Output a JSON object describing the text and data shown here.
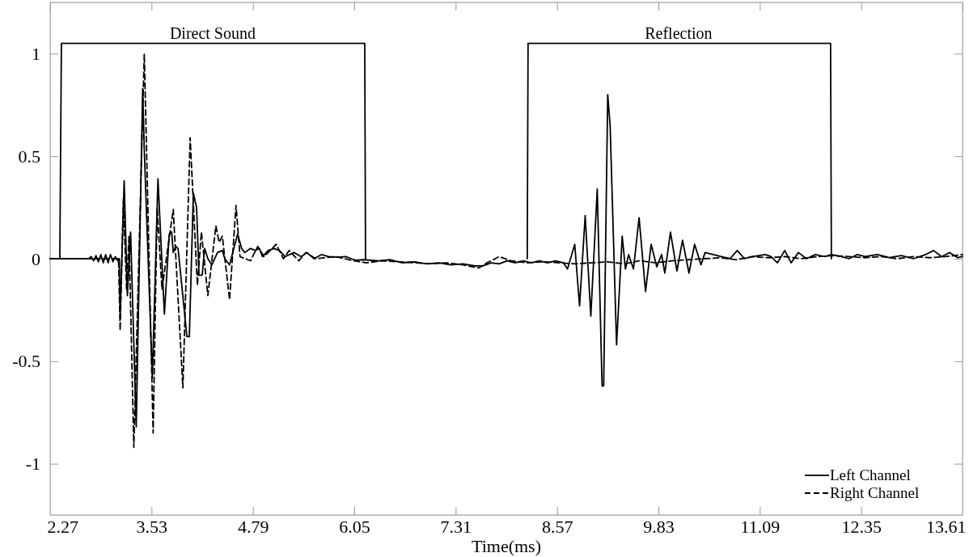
{
  "chart_data": {
    "type": "line",
    "xlabel": "Time(ms)",
    "xlim": [
      2.27,
      13.61
    ],
    "xticks": [
      2.27,
      3.53,
      4.79,
      6.05,
      7.31,
      8.57,
      9.83,
      11.09,
      12.35,
      13.61
    ],
    "ylim": [
      -1.25,
      1.25
    ],
    "yticks": [
      -1,
      -0.5,
      0,
      0.5,
      1
    ],
    "grid": false,
    "legend": "bottom right",
    "annotations": [
      {
        "text": "Direct Sound",
        "x": 4.29,
        "y": 1.05
      },
      {
        "text": "Reflection",
        "x": 10.08,
        "y": 1.05
      }
    ],
    "series": [
      {
        "name": "Left Channel",
        "color": "#000000",
        "line_style": "solid",
        "x": [
          2.27,
          2.75,
          2.78,
          2.81,
          2.84,
          2.87,
          2.9,
          2.93,
          2.96,
          2.99,
          3.02,
          3.05,
          3.08,
          3.11,
          3.13,
          3.14,
          3.19,
          3.23,
          3.27,
          3.34,
          3.42,
          3.44,
          3.54,
          3.61,
          3.69,
          3.75,
          3.78,
          3.8,
          3.83,
          3.86,
          3.97,
          4.0,
          4.05,
          4.09,
          4.12,
          4.16,
          4.19,
          4.23,
          4.28,
          4.35,
          4.41,
          4.44,
          4.5,
          4.6,
          4.65,
          4.69,
          4.76,
          4.82,
          4.87,
          4.91,
          4.98,
          5.05,
          5.12,
          5.19,
          5.3,
          5.39,
          5.46,
          5.55,
          5.64,
          5.73,
          5.84,
          5.95,
          6.06,
          6.17,
          6.35,
          6.5,
          6.65,
          6.8,
          6.95,
          7.1,
          7.25,
          7.4,
          7.55,
          7.65,
          7.75,
          7.85,
          7.95,
          8.05,
          8.15,
          8.25,
          8.35,
          8.45,
          8.55,
          8.65,
          8.7,
          8.79,
          8.85,
          8.92,
          8.99,
          9.07,
          9.13,
          9.15,
          9.2,
          9.23,
          9.31,
          9.38,
          9.42,
          9.46,
          9.52,
          9.59,
          9.67,
          9.74,
          9.81,
          9.87,
          9.91,
          9.98,
          10.06,
          10.13,
          10.21,
          10.28,
          10.36,
          10.41,
          10.51,
          10.61,
          10.72,
          10.81,
          10.9,
          11.0,
          11.16,
          11.23,
          11.31,
          11.4,
          11.48,
          11.57,
          11.67,
          11.78,
          11.9,
          11.98,
          12.1,
          12.2,
          12.3,
          12.4,
          12.55,
          12.7,
          12.85,
          13.0,
          13.15,
          13.25,
          13.35,
          13.45,
          13.55,
          13.61
        ],
        "values": [
          0,
          0,
          0.01,
          -0.01,
          0.015,
          -0.015,
          0.02,
          -0.02,
          0.02,
          -0.02,
          0.02,
          -0.015,
          0.01,
          -0.01,
          0,
          -0.28,
          0.38,
          -0.18,
          0.13,
          -0.82,
          0.83,
          0.53,
          -0.58,
          0.39,
          -0.27,
          0.12,
          0.13,
          0.03,
          0.06,
          0.05,
          -0.38,
          -0.38,
          0.32,
          0.25,
          -0.08,
          -0.08,
          0.05,
          0,
          -0.03,
          0.03,
          0.04,
          0,
          -0.03,
          0.12,
          0.05,
          0.03,
          0.05,
          0.04,
          0.05,
          0.01,
          0.04,
          0.05,
          0.04,
          0.01,
          0.03,
          0.01,
          0.03,
          0,
          0.02,
          0.01,
          0.007,
          0.01,
          -0.007,
          -0.005,
          -0.01,
          -0.005,
          -0.02,
          -0.015,
          -0.025,
          -0.02,
          -0.03,
          -0.025,
          -0.035,
          -0.035,
          -0.02,
          -0.025,
          -0.01,
          -0.02,
          -0.01,
          -0.02,
          -0.01,
          -0.02,
          -0.01,
          -0.02,
          -0.05,
          0.07,
          -0.23,
          0.21,
          -0.28,
          0.34,
          -0.62,
          -0.62,
          0.8,
          0.65,
          -0.42,
          0.11,
          -0.05,
          0.02,
          -0.05,
          0.2,
          -0.16,
          0.07,
          -0.04,
          0.02,
          -0.07,
          0.13,
          -0.06,
          0.09,
          -0.07,
          0.07,
          -0.03,
          0.03,
          0.02,
          0.01,
          0,
          0.04,
          0,
          0.01,
          0.02,
          0.01,
          -0.02,
          0.04,
          -0.02,
          0.03,
          0,
          0.02,
          0.01,
          0.02,
          0.01,
          0,
          0.02,
          0.01,
          0.02,
          0.005,
          0.015,
          0,
          0.02,
          0.04,
          0.01,
          0.03,
          0.005,
          0.01
        ]
      },
      {
        "name": "Right Channel",
        "color": "#000000",
        "line_style": "dashed",
        "x": [
          2.27,
          3.12,
          3.14,
          3.18,
          3.22,
          3.25,
          3.31,
          3.44,
          3.47,
          3.55,
          3.6,
          3.66,
          3.8,
          3.92,
          4.01,
          4.1,
          4.15,
          4.23,
          4.33,
          4.37,
          4.41,
          4.5,
          4.58,
          4.63,
          4.76,
          4.85,
          4.93,
          5.08,
          5.17,
          5.24,
          5.36,
          5.45,
          5.57,
          5.82,
          6.04,
          6.2,
          6.4,
          6.6,
          6.8,
          7.0,
          7.2,
          7.4,
          7.6,
          7.7,
          7.85,
          8.0,
          8.2,
          8.4,
          8.6,
          8.8,
          9.0,
          9.2,
          9.4,
          9.6,
          9.8,
          10.0,
          10.2,
          10.4,
          10.6,
          10.8,
          11.0,
          11.2,
          11.4,
          11.6,
          11.8,
          12.0,
          12.2,
          12.4,
          12.6,
          12.8,
          13.0,
          13.2,
          13.4,
          13.61
        ],
        "values": [
          0,
          0,
          -0.35,
          0.29,
          -0.15,
          0.11,
          -0.92,
          1.0,
          0.5,
          -0.85,
          0.25,
          -0.15,
          0.24,
          -0.63,
          0.59,
          -0.13,
          0.13,
          -0.18,
          0.16,
          0.08,
          0.11,
          -0.2,
          0.26,
          0.01,
          -0.01,
          0.06,
          0.01,
          0.07,
          0,
          0.04,
          -0.01,
          0.03,
          0,
          0.01,
          -0.01,
          -0.02,
          -0.01,
          -0.015,
          -0.02,
          -0.025,
          -0.02,
          -0.03,
          -0.045,
          -0.02,
          0.01,
          -0.01,
          -0.02,
          -0.015,
          -0.02,
          -0.025,
          -0.02,
          -0.015,
          -0.025,
          -0.01,
          -0.02,
          -0.01,
          -0.005,
          0,
          0.005,
          -0.005,
          0.01,
          0.005,
          0.01,
          0.0,
          0.01,
          0.015,
          0.01,
          0.005,
          0.01,
          0.0,
          0.01,
          0.005,
          0.01,
          0.02
        ]
      },
      {
        "color": "#000000",
        "line_style": "solid",
        "x": [
          2.39,
          2.41,
          6.18,
          6.19,
          7.2,
          8.2,
          8.21,
          11.97,
          11.98
        ],
        "values": [
          0,
          1.05,
          1.05,
          0,
          null,
          0,
          1.05,
          1.05,
          0
        ]
      }
    ]
  }
}
